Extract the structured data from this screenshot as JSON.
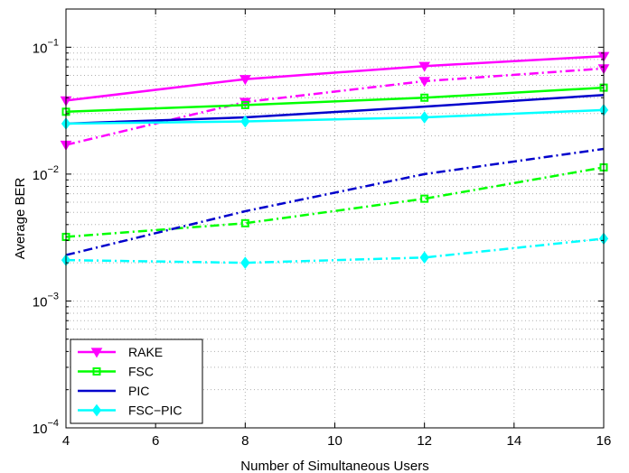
{
  "chart_data": {
    "type": "line",
    "title": "",
    "xlabel": "Number of Simultaneous Users",
    "ylabel": "Average BER",
    "xlim": [
      4,
      16
    ],
    "ylim": [
      0.0001,
      0.2
    ],
    "yscale": "log",
    "grid": true,
    "grid_style": "dotted",
    "legend_position": "bottom-left",
    "x_ticks": [
      4,
      6,
      8,
      10,
      12,
      14,
      16
    ],
    "x_tick_labels": [
      "4",
      "6",
      "8",
      "10",
      "12",
      "14",
      "16"
    ],
    "y_ticks": [
      {
        "value": 0.1,
        "base": "10",
        "exp": "−1"
      },
      {
        "value": 0.01,
        "base": "10",
        "exp": "−2"
      },
      {
        "value": 0.001,
        "base": "10",
        "exp": "−3"
      },
      {
        "value": 0.0001,
        "base": "10",
        "exp": "−4"
      }
    ],
    "series": [
      {
        "name": "RAKE",
        "color": "#ff00ff",
        "marker": "triangle-down",
        "dash": "solid",
        "x": [
          4,
          8,
          12,
          16
        ],
        "y": [
          0.038,
          0.056,
          0.071,
          0.085
        ]
      },
      {
        "name": "",
        "color": "#ff00ff",
        "marker": "triangle-down",
        "dash": "dashdot",
        "x": [
          4,
          8,
          12,
          16
        ],
        "y": [
          0.017,
          0.037,
          0.054,
          0.068
        ]
      },
      {
        "name": "FSC",
        "color": "#00ff00",
        "marker": "square",
        "dash": "solid",
        "x": [
          4,
          8,
          12,
          16
        ],
        "y": [
          0.031,
          0.035,
          0.04,
          0.048
        ]
      },
      {
        "name": "",
        "color": "#00ff00",
        "marker": "square",
        "dash": "dashdot",
        "x": [
          4,
          8,
          12,
          16
        ],
        "y": [
          0.0032,
          0.0041,
          0.0064,
          0.0113
        ]
      },
      {
        "name": "PIC",
        "color": "#0000cc",
        "marker": "none",
        "dash": "solid",
        "x": [
          4,
          8,
          12,
          16
        ],
        "y": [
          0.025,
          0.028,
          0.034,
          0.042
        ]
      },
      {
        "name": "",
        "color": "#0000cc",
        "marker": "none",
        "dash": "dashdot",
        "x": [
          4,
          8,
          12,
          16
        ],
        "y": [
          0.0023,
          0.0051,
          0.01,
          0.0158
        ]
      },
      {
        "name": "FSC−PIC",
        "color": "#00ffff",
        "marker": "diamond",
        "dash": "solid",
        "x": [
          4,
          8,
          12,
          16
        ],
        "y": [
          0.025,
          0.026,
          0.028,
          0.032
        ]
      },
      {
        "name": "",
        "color": "#00ffff",
        "marker": "diamond",
        "dash": "dashdot",
        "x": [
          4,
          8,
          12,
          16
        ],
        "y": [
          0.0021,
          0.002,
          0.0022,
          0.0031
        ]
      }
    ],
    "legend": [
      {
        "label": "RAKE",
        "color": "#ff00ff",
        "marker": "triangle-down"
      },
      {
        "label": "FSC",
        "color": "#00ff00",
        "marker": "square"
      },
      {
        "label": "PIC",
        "color": "#0000cc",
        "marker": "none"
      },
      {
        "label": "FSC−PIC",
        "color": "#00ffff",
        "marker": "diamond"
      }
    ]
  }
}
